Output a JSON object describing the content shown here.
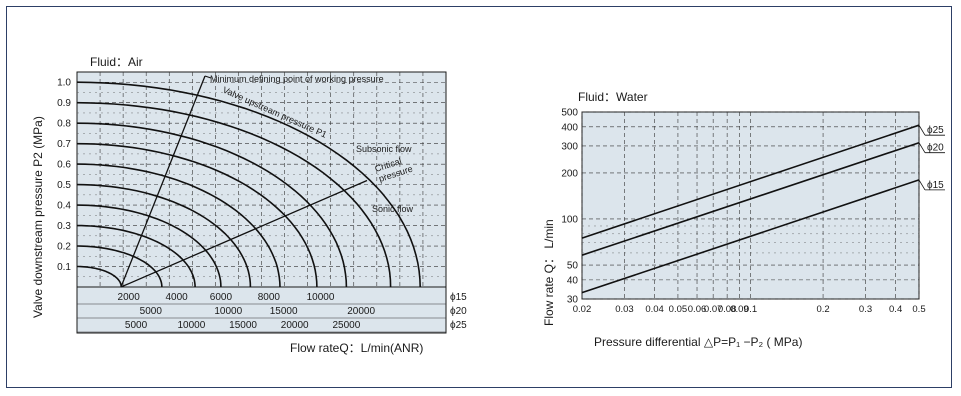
{
  "chart_data": [
    {
      "type": "line",
      "title": "Fluid：Air",
      "ylabel": "Valve downstream pressure  P2   (MPa)",
      "xlabel": "Flow rateQ：L/min(ANR)",
      "ylim": [
        0,
        1.05
      ],
      "y_ticks": [
        "1.0",
        "0.9",
        "0.8",
        "0.7",
        "0.6",
        "0.5",
        "0.4",
        "0.3",
        "0.2",
        "0.1"
      ],
      "y_values": [
        1.0,
        0.9,
        0.8,
        0.7,
        0.6,
        0.5,
        0.4,
        0.3,
        0.2,
        0.1
      ],
      "grid": true,
      "pressure_curves": [
        {
          "p1": 0.1,
          "end": 0.12
        },
        {
          "p1": 0.2,
          "end": 0.23
        },
        {
          "p1": 0.3,
          "end": 0.32
        },
        {
          "p1": 0.4,
          "end": 0.39
        },
        {
          "p1": 0.5,
          "end": 0.47
        },
        {
          "p1": 0.6,
          "end": 0.55
        },
        {
          "p1": 0.7,
          "end": 0.65
        },
        {
          "p1": 0.8,
          "end": 0.73
        },
        {
          "p1": 0.9,
          "end": 0.85
        },
        {
          "p1": 1.0,
          "end": 0.93
        }
      ],
      "annotations": {
        "min_point": "Minimum defining point of working pressure",
        "upstream": "Valve upstream pressure P1",
        "subsonic": "Subsonic flow",
        "critical_1": "Critical",
        "critical_2": "pressure",
        "sonic": "Sonic flow"
      },
      "flow_scales": [
        {
          "name": "ϕ15",
          "ticks": [
            "2000",
            "4000",
            "6000",
            "8000",
            "10000"
          ]
        },
        {
          "name": "ϕ20",
          "ticks": [
            "5000",
            "10000",
            "15000",
            "20000"
          ]
        },
        {
          "name": "ϕ25",
          "ticks": [
            "5000",
            "10000",
            "15000",
            "20000",
            "25000"
          ]
        }
      ]
    },
    {
      "type": "line",
      "title": "Fluid：Water",
      "xlabel": "Pressure differential  △P=P₁ −P₂ ( MPa)",
      "ylabel": "Flow rate Q：  L/min",
      "x_scale": "log",
      "y_scale": "log",
      "xlim": [
        0.02,
        0.5
      ],
      "ylim": [
        30,
        500
      ],
      "x_ticks": [
        "0.02",
        "0.03",
        "0.04",
        "0.05",
        "0.06",
        "0.07",
        "0.08",
        "0.09",
        "0.1",
        "0.2",
        "0.3",
        "0.4",
        "0.5"
      ],
      "x_tick_values": [
        0.02,
        0.03,
        0.04,
        0.05,
        0.06,
        0.07,
        0.08,
        0.09,
        0.1,
        0.2,
        0.3,
        0.4,
        0.5
      ],
      "y_ticks": [
        "500",
        "400",
        "300",
        "200",
        "100",
        "50",
        "40",
        "30"
      ],
      "y_tick_values": [
        500,
        400,
        300,
        200,
        100,
        50,
        40,
        30
      ],
      "grid": true,
      "series": [
        {
          "name": "ϕ25",
          "x": [
            0.02,
            0.5
          ],
          "y": [
            75,
            410
          ]
        },
        {
          "name": "ϕ20",
          "x": [
            0.02,
            0.5
          ],
          "y": [
            58,
            315
          ]
        },
        {
          "name": "ϕ15",
          "x": [
            0.02,
            0.5
          ],
          "y": [
            33,
            180
          ]
        }
      ]
    }
  ]
}
